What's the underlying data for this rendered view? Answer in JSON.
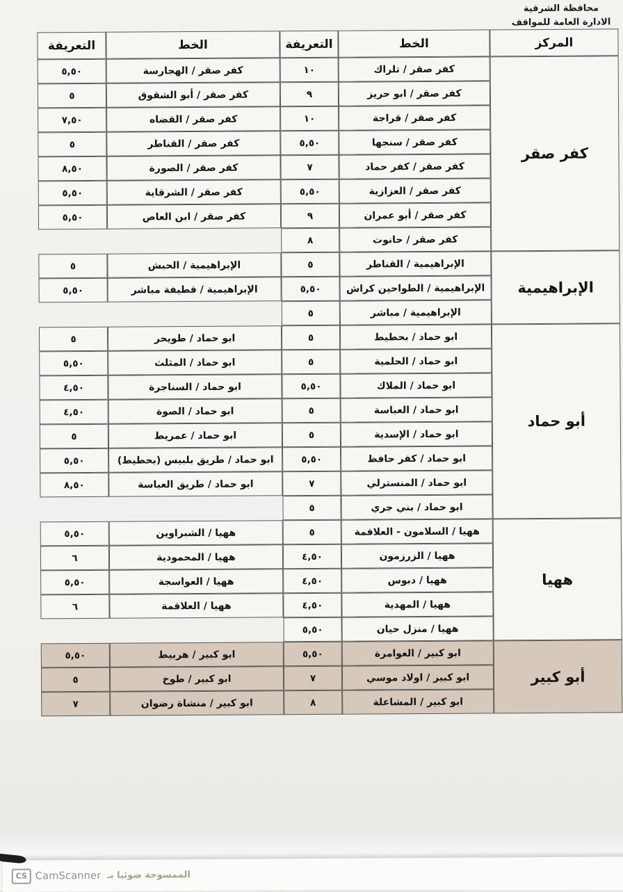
{
  "document": {
    "org_line1": "محافظة الشرقية",
    "org_line2": "الادارة العامة للمواقف"
  },
  "table": {
    "headers": {
      "center": "المركز",
      "line": "الخط",
      "tariff": "التعريفة"
    },
    "highlight_color": "#d6c9bb",
    "sections": [
      {
        "center": "كفر صقر",
        "highlight": false,
        "primary_rows": [
          {
            "line": "كفر صقر / تلراك",
            "tariff": "١٠"
          },
          {
            "line": "كفر صقر / ابو حريز",
            "tariff": "٩"
          },
          {
            "line": "كفر صقر / قراجة",
            "tariff": "١٠"
          },
          {
            "line": "كفر صقر / سنجها",
            "tariff": "٥,٥٠"
          },
          {
            "line": "كفر صقر / كفر حماد",
            "tariff": "٧"
          },
          {
            "line": "كفر صقر / العزازية",
            "tariff": "٥,٥٠"
          },
          {
            "line": "كفر صقر / أبو عمران",
            "tariff": "٩"
          },
          {
            "line": "كفر صقر / حانوت",
            "tariff": "٨"
          }
        ],
        "secondary_rows": [
          {
            "line": "كفر صقر / الهجارسة",
            "tariff": "٥,٥٠"
          },
          {
            "line": "كفر صقر / أبو الشقوق",
            "tariff": "٥"
          },
          {
            "line": "كفر صقر / القضاه",
            "tariff": "٧,٥٠"
          },
          {
            "line": "كفر صقر / القناطر",
            "tariff": "٥"
          },
          {
            "line": "كفر صقر / الصورة",
            "tariff": "٨,٥٠"
          },
          {
            "line": "كفر صقر / الشرقاية",
            "tariff": "٥,٥٠"
          },
          {
            "line": "كفر صقر / ابن العاص",
            "tariff": "٥,٥٠"
          }
        ]
      },
      {
        "center": "الإبراهيمية",
        "highlight": false,
        "primary_rows": [
          {
            "line": "الإبراهيمية / القناطر",
            "tariff": "٥"
          },
          {
            "line": "الإبراهيمية / الطواحين كراش",
            "tariff": "٥,٥٠"
          },
          {
            "line": "الإبراهيمية / مباشر",
            "tariff": "٥"
          }
        ],
        "secondary_rows": [
          {
            "line": "الإبراهيمية / الحبش",
            "tariff": "٥"
          },
          {
            "line": "الإبراهيمية / قطيفة مباشر",
            "tariff": "٥,٥٠"
          }
        ]
      },
      {
        "center": "أبو حماد",
        "highlight": false,
        "primary_rows": [
          {
            "line": "ابو حماد / بحطيط",
            "tariff": "٥"
          },
          {
            "line": "ابو حماد / الحلمية",
            "tariff": "٥"
          },
          {
            "line": "ابو حماد / الملاك",
            "tariff": "٥,٥٠"
          },
          {
            "line": "ابو حماد / العباسة",
            "tariff": "٥"
          },
          {
            "line": "ابو حماد / الإسدية",
            "tariff": "٥"
          },
          {
            "line": "ابو حماد / كفر حافظ",
            "tariff": "٥,٥٠"
          },
          {
            "line": "ابو حماد / المنسترلي",
            "tariff": "٧"
          },
          {
            "line": "ابو حماد / بني جري",
            "tariff": "٥"
          }
        ],
        "secondary_rows": [
          {
            "line": "ابو حماد / طويحر",
            "tariff": "٥"
          },
          {
            "line": "ابو حماد / المثلث",
            "tariff": "٥,٥٠"
          },
          {
            "line": "ابو حماد / السناجرة",
            "tariff": "٤,٥٠"
          },
          {
            "line": "ابو حماد / الصوة",
            "tariff": "٤,٥٠"
          },
          {
            "line": "ابو حماد / عمريط",
            "tariff": "٥"
          },
          {
            "line": "ابو حماد / طريق بلبيس (بحطيط)",
            "tariff": "٥,٥٠"
          },
          {
            "line": "ابو حماد / طريق العباسة",
            "tariff": "٨,٥٠"
          }
        ]
      },
      {
        "center": "ههيا",
        "highlight": false,
        "primary_rows": [
          {
            "line": "ههيا / السلامون - العلاقمة",
            "tariff": "٥"
          },
          {
            "line": "ههيا / الزرزمون",
            "tariff": "٤,٥٠"
          },
          {
            "line": "ههيا / دبوس",
            "tariff": "٤,٥٠"
          },
          {
            "line": "ههيا / المهدية",
            "tariff": "٤,٥٠"
          },
          {
            "line": "ههيا / منزل حيان",
            "tariff": "٥,٥٠"
          }
        ],
        "secondary_rows": [
          {
            "line": "ههيا / الشبراوين",
            "tariff": "٥,٥٠"
          },
          {
            "line": "ههيا / المحمودية",
            "tariff": "٦"
          },
          {
            "line": "ههيا / العواسجة",
            "tariff": "٥,٥٠"
          },
          {
            "line": "ههيا / العلاقمة",
            "tariff": "٦"
          }
        ]
      },
      {
        "center": "أبو كبير",
        "highlight": true,
        "primary_rows": [
          {
            "line": "ابو كبير / العوامرة",
            "tariff": "٥,٥٠"
          },
          {
            "line": "ابو كبير / اولاد موسي",
            "tariff": "٧"
          },
          {
            "line": "ابو كبير / المشاعلة",
            "tariff": "٨"
          }
        ],
        "secondary_rows": [
          {
            "line": "ابو كبير / هربيط",
            "tariff": "٥,٥٠"
          },
          {
            "line": "ابو كبير / طوخ",
            "tariff": "٥"
          },
          {
            "line": "ابو كبير / منشاة رضوان",
            "tariff": "٧"
          }
        ]
      }
    ]
  },
  "footer": {
    "badge": "CS",
    "brand": "CamScanner",
    "scanned_with": "الممسوحة ضوئيا بـ"
  }
}
